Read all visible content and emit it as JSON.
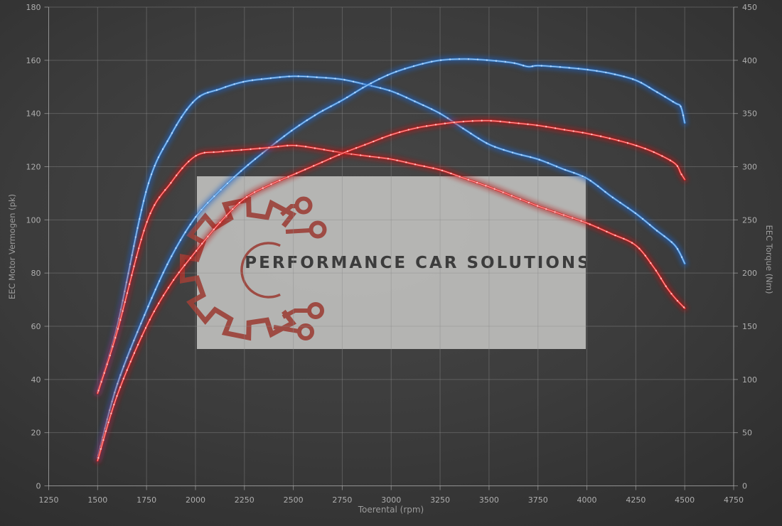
{
  "chart_data": {
    "type": "line",
    "title": "",
    "xlabel": "Toerental (rpm)",
    "ylabel_left": "EEC Motor Vermogen (pk)",
    "ylabel_right": "EEC Torque (Nm)",
    "xlim": [
      1250,
      4750
    ],
    "ylim_left": [
      0,
      180
    ],
    "ylim_right": [
      0,
      450
    ],
    "x_ticks": [
      1250,
      1500,
      1750,
      2000,
      2250,
      2500,
      2750,
      3000,
      3250,
      3500,
      3750,
      4000,
      4250,
      4500,
      4750
    ],
    "y_ticks_left": [
      0,
      20,
      40,
      60,
      80,
      100,
      120,
      140,
      160,
      180
    ],
    "y_ticks_right": [
      0,
      50,
      100,
      150,
      200,
      250,
      300,
      350,
      400,
      450
    ],
    "grid": true,
    "legend": "none",
    "series": [
      {
        "name": "blue-torque",
        "axis": "right",
        "unit": "Nm",
        "color": "#3f8ad8",
        "glow": "#1e62c4",
        "highlight": "#b9d8fa",
        "x": [
          1500,
          1600,
          1750,
          1875,
          2000,
          2125,
          2250,
          2375,
          2500,
          2625,
          2750,
          2875,
          3000,
          3125,
          3250,
          3375,
          3500,
          3625,
          3750,
          3875,
          4000,
          4125,
          4250,
          4350,
          4450,
          4500
        ],
        "y": [
          88,
          150,
          278,
          330,
          363,
          373,
          380,
          383,
          385,
          384,
          382,
          377,
          371,
          361,
          350,
          335,
          321,
          313,
          307,
          298,
          289,
          272,
          256,
          241,
          226,
          209
        ]
      },
      {
        "name": "blue-power",
        "axis": "left",
        "unit": "pk",
        "color": "#3f8ad8",
        "glow": "#1e62c4",
        "highlight": "#b9d8fa",
        "x": [
          1500,
          1600,
          1750,
          1875,
          2000,
          2125,
          2250,
          2375,
          2500,
          2625,
          2750,
          2875,
          3000,
          3125,
          3250,
          3375,
          3500,
          3625,
          3700,
          3750,
          3875,
          4000,
          4125,
          4250,
          4350,
          4450,
          4480,
          4500
        ],
        "y": [
          10.5,
          38,
          66,
          86,
          101,
          111,
          119.5,
          127,
          134,
          140,
          145,
          150.5,
          155,
          158,
          160,
          160.5,
          160,
          159,
          157.6,
          158,
          157.4,
          156.5,
          155,
          152.5,
          148.4,
          144,
          142.5,
          136.5
        ]
      },
      {
        "name": "red-torque",
        "axis": "right",
        "unit": "Nm",
        "color": "#e02424",
        "glow": "#b51212",
        "highlight": "#ffc4c4",
        "x": [
          1500,
          1600,
          1750,
          1875,
          2000,
          2125,
          2250,
          2375,
          2500,
          2625,
          2750,
          2875,
          3000,
          3125,
          3250,
          3375,
          3500,
          3625,
          3750,
          3875,
          4000,
          4125,
          4250,
          4343,
          4406,
          4453,
          4500
        ],
        "y": [
          87,
          145,
          247,
          285,
          310,
          314,
          316,
          318,
          320,
          317,
          313,
          310,
          307,
          302,
          297,
          289,
          281,
          272,
          263,
          255,
          247,
          237,
          226,
          205,
          187,
          176,
          167
        ]
      },
      {
        "name": "red-power",
        "axis": "left",
        "unit": "pk",
        "color": "#e02424",
        "glow": "#b51212",
        "highlight": "#ffc4c4",
        "x": [
          1500,
          1600,
          1750,
          1875,
          2000,
          2125,
          2250,
          2375,
          2500,
          2625,
          2750,
          2875,
          3000,
          3125,
          3250,
          3375,
          3500,
          3625,
          3750,
          3875,
          4000,
          4125,
          4250,
          4350,
          4450,
          4480,
          4500
        ],
        "y": [
          9.5,
          34,
          60,
          76,
          88,
          99,
          108,
          113,
          117,
          121,
          125,
          128.5,
          132,
          134.5,
          136,
          137,
          137.3,
          136.5,
          135.5,
          134,
          132.5,
          130.5,
          128,
          125.2,
          121.2,
          117.5,
          115.2
        ]
      }
    ],
    "peaks": {
      "blue_power_pk": 160.5,
      "blue_torque_nm": 385,
      "red_power_pk": 137.3,
      "red_torque_nm": 320
    },
    "watermark": {
      "text": "PERFORMANCE CAR SOLUTIONS"
    }
  },
  "colors": {
    "background": "#3c3c3c",
    "grid": "#8c8c8c",
    "axis": "#c0c0c0",
    "tick_label": "#aeaeae",
    "axis_title": "#9b9b9b",
    "watermark_bg": "#cbcac8",
    "watermark_text": "#3c3c3c",
    "logo_red": "#9c4038",
    "curve_blue": "#3f8ad8",
    "curve_red": "#e02424"
  }
}
